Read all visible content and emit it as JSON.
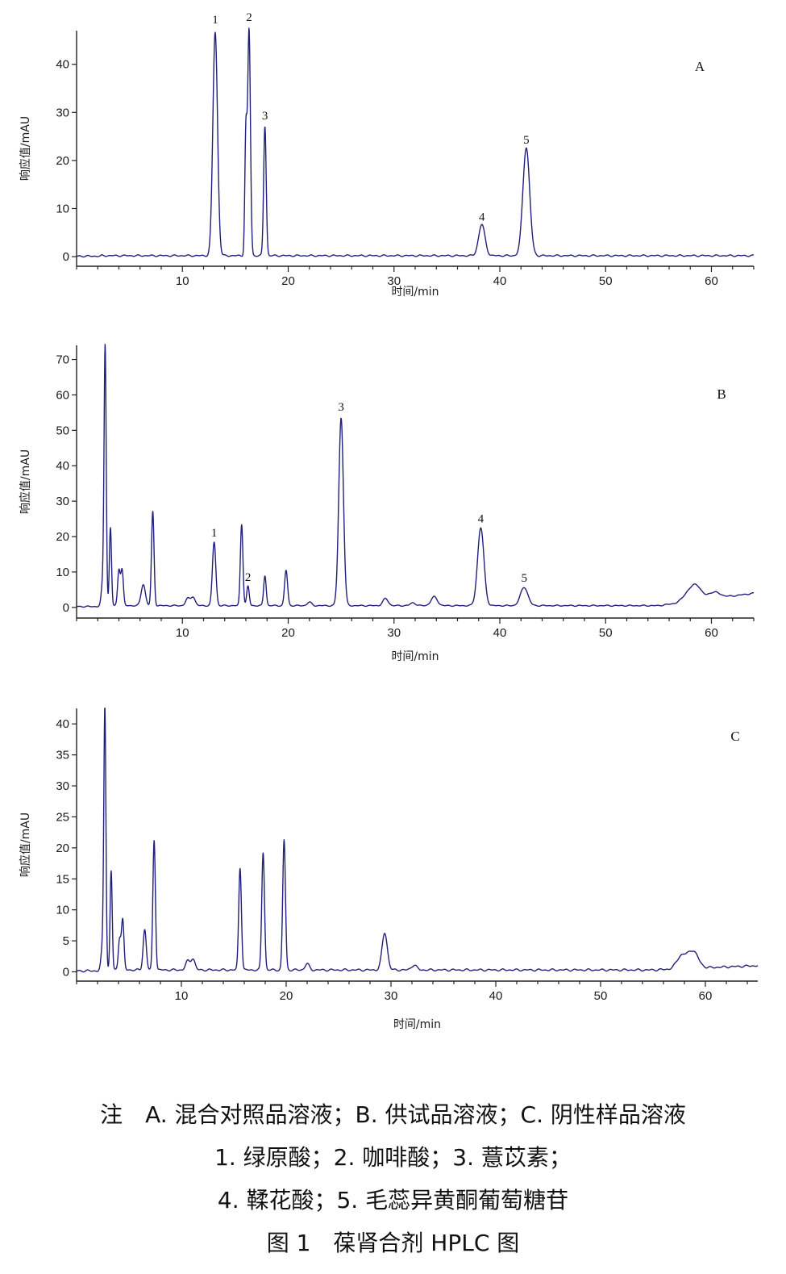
{
  "chart_data": [
    {
      "type": "line",
      "panel": "A",
      "xlabel": "时间/min",
      "ylabel": "响应值/mAU",
      "xlim": [
        0,
        64
      ],
      "ylim": [
        -2,
        47
      ],
      "xticks": [
        10,
        20,
        30,
        40,
        50,
        60
      ],
      "yticks": [
        0,
        10,
        20,
        30,
        40
      ],
      "baseline": 0.2,
      "peaks": [
        {
          "rt": 13.1,
          "height": 46.5,
          "width": 0.22
        },
        {
          "rt": 16.0,
          "height": 25,
          "width": 0.1
        },
        {
          "rt": 16.3,
          "height": 47,
          "width": 0.13
        },
        {
          "rt": 17.8,
          "height": 27,
          "width": 0.12
        },
        {
          "rt": 38.3,
          "height": 6.5,
          "width": 0.3
        },
        {
          "rt": 42.5,
          "height": 22.5,
          "width": 0.32
        }
      ],
      "peak_labels": [
        {
          "text": "1",
          "x": 13.1,
          "y": 48.5
        },
        {
          "text": "2",
          "x": 16.3,
          "y": 49.0
        },
        {
          "text": "3",
          "x": 17.8,
          "y": 28.5
        },
        {
          "text": "4",
          "x": 38.3,
          "y": 7.5
        },
        {
          "text": "5",
          "x": 42.5,
          "y": 23.5
        }
      ]
    },
    {
      "type": "line",
      "panel": "B",
      "xlabel": "时间/min",
      "ylabel": "响应值/mAU",
      "xlim": [
        0,
        64
      ],
      "ylim": [
        -3,
        74
      ],
      "xticks": [
        10,
        20,
        30,
        40,
        50,
        60
      ],
      "yticks": [
        0,
        10,
        20,
        30,
        40,
        50,
        60,
        70
      ],
      "baseline": 0.5,
      "baseline_end": 4,
      "peaks": [
        {
          "rt": 2.5,
          "height": 7,
          "width": 0.15
        },
        {
          "rt": 2.7,
          "height": 71,
          "width": 0.1
        },
        {
          "rt": 3.2,
          "height": 22,
          "width": 0.1
        },
        {
          "rt": 4.0,
          "height": 10,
          "width": 0.12
        },
        {
          "rt": 4.3,
          "height": 10,
          "width": 0.12
        },
        {
          "rt": 6.3,
          "height": 6,
          "width": 0.2
        },
        {
          "rt": 7.2,
          "height": 26.5,
          "width": 0.12
        },
        {
          "rt": 10.5,
          "height": 2,
          "width": 0.2
        },
        {
          "rt": 11.0,
          "height": 2.5,
          "width": 0.2
        },
        {
          "rt": 13.0,
          "height": 18,
          "width": 0.16
        },
        {
          "rt": 15.6,
          "height": 23,
          "width": 0.12
        },
        {
          "rt": 16.2,
          "height": 5.5,
          "width": 0.12
        },
        {
          "rt": 17.8,
          "height": 8.5,
          "width": 0.12
        },
        {
          "rt": 19.8,
          "height": 10,
          "width": 0.14
        },
        {
          "rt": 22.0,
          "height": 1.0,
          "width": 0.2
        },
        {
          "rt": 25.0,
          "height": 53,
          "width": 0.22
        },
        {
          "rt": 29.2,
          "height": 2,
          "width": 0.25
        },
        {
          "rt": 31.8,
          "height": 0.8,
          "width": 0.25
        },
        {
          "rt": 33.8,
          "height": 2.5,
          "width": 0.3
        },
        {
          "rt": 38.2,
          "height": 22,
          "width": 0.3
        },
        {
          "rt": 42.3,
          "height": 5.2,
          "width": 0.35
        },
        {
          "rt": 57.8,
          "height": 2.5,
          "width": 0.5
        },
        {
          "rt": 58.6,
          "height": 3.8,
          "width": 0.45
        },
        {
          "rt": 60.2,
          "height": 1.8,
          "width": 0.6
        }
      ],
      "peak_labels": [
        {
          "text": "1",
          "x": 13.0,
          "y": 20.0
        },
        {
          "text": "2",
          "x": 16.2,
          "y": 7.5
        },
        {
          "text": "3",
          "x": 25.0,
          "y": 55.5
        },
        {
          "text": "4",
          "x": 38.2,
          "y": 24.0
        },
        {
          "text": "5",
          "x": 42.3,
          "y": 7.3
        }
      ]
    },
    {
      "type": "line",
      "panel": "C",
      "xlabel": "时间/min",
      "ylabel": "响应值/mAU",
      "xlim": [
        0,
        65
      ],
      "ylim": [
        -1.5,
        42.5
      ],
      "xticks": [
        10,
        20,
        30,
        40,
        50,
        60
      ],
      "yticks": [
        0,
        5,
        10,
        15,
        20,
        25,
        30,
        35,
        40
      ],
      "baseline": 0.3,
      "baseline_end": 1.0,
      "peaks": [
        {
          "rt": 2.5,
          "height": 4,
          "width": 0.15
        },
        {
          "rt": 2.7,
          "height": 41,
          "width": 0.1
        },
        {
          "rt": 3.3,
          "height": 16,
          "width": 0.1
        },
        {
          "rt": 4.1,
          "height": 5,
          "width": 0.12
        },
        {
          "rt": 4.4,
          "height": 8,
          "width": 0.12
        },
        {
          "rt": 6.5,
          "height": 6.5,
          "width": 0.15
        },
        {
          "rt": 7.4,
          "height": 21,
          "width": 0.12
        },
        {
          "rt": 10.6,
          "height": 1.4,
          "width": 0.2
        },
        {
          "rt": 11.1,
          "height": 1.8,
          "width": 0.2
        },
        {
          "rt": 15.6,
          "height": 16.5,
          "width": 0.13
        },
        {
          "rt": 17.8,
          "height": 19,
          "width": 0.13
        },
        {
          "rt": 19.8,
          "height": 21,
          "width": 0.13
        },
        {
          "rt": 22.0,
          "height": 1.0,
          "width": 0.2
        },
        {
          "rt": 29.4,
          "height": 6,
          "width": 0.25
        },
        {
          "rt": 32.2,
          "height": 0.8,
          "width": 0.25
        },
        {
          "rt": 57.7,
          "height": 2,
          "width": 0.45
        },
        {
          "rt": 58.8,
          "height": 2.8,
          "width": 0.5
        }
      ],
      "peak_labels": []
    }
  ],
  "caption": {
    "line1": "注　A. 混合对照品溶液；B. 供试品溶液；C. 阴性样品溶液",
    "line2": "1. 绿原酸；2. 咖啡酸；3. 薏苡素；",
    "line3": "4. 鞣花酸；5. 毛蕊异黄酮葡萄糖苷",
    "line4": "图 1　葆肾合剂 HPLC 图"
  }
}
